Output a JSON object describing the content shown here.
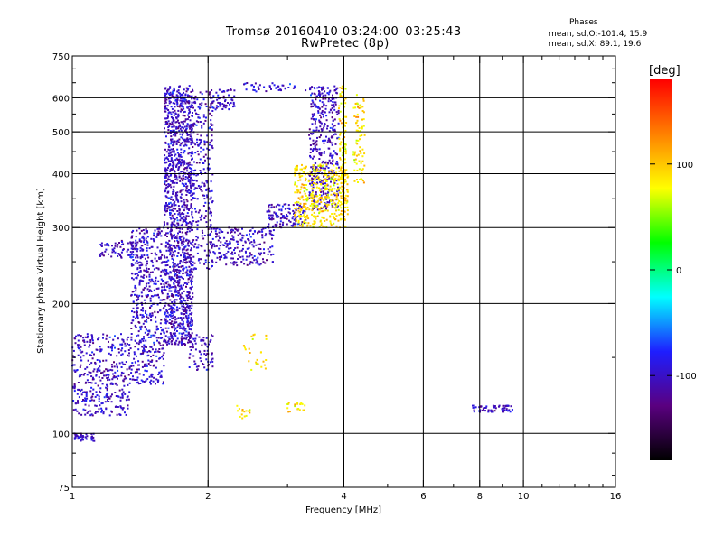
{
  "chart_data": {
    "type": "scatter",
    "title": "Tromsø 20160410 03:24:00–03:25:43",
    "subtitle": "RwPretec (8p)",
    "xlabel": "Frequency [MHz]",
    "ylabel": "Stationary phase Virtual Height [km]",
    "x_scale": "log",
    "y_scale": "log",
    "xlim": [
      1,
      16
    ],
    "ylim": [
      75,
      750
    ],
    "x_ticks": [
      1,
      2,
      4,
      6,
      8,
      10,
      16
    ],
    "y_ticks": [
      75,
      100,
      200,
      300,
      400,
      500,
      600,
      750
    ],
    "grid": true,
    "phase_stats": {
      "heading": "Phases",
      "o_line": "mean, sd,O:-101.4, 15.9",
      "x_line": "mean, sd,X:  89.1, 19.6"
    },
    "colorbar": {
      "label": "[deg]",
      "ticks": [
        100,
        0,
        -100
      ],
      "range": [
        -180,
        180
      ],
      "colors": [
        "#000000",
        "#5a0080",
        "#1e1eff",
        "#00ffff",
        "#00ff00",
        "#ffff00",
        "#ff8000",
        "#ff0000"
      ]
    },
    "series": [
      {
        "name": "O",
        "phase": -101.4,
        "clusters": [
          {
            "f": [
              1.6,
              1.85
            ],
            "h": [
              160,
              640
            ],
            "count": 1400
          },
          {
            "f": [
              1.35,
              1.6
            ],
            "h": [
              130,
              300
            ],
            "count": 500
          },
          {
            "f": [
              1.0,
              1.35
            ],
            "h": [
              110,
              170
            ],
            "count": 380
          },
          {
            "f": [
              1.15,
              1.45
            ],
            "h": [
              255,
              280
            ],
            "count": 90
          },
          {
            "f": [
              1.0,
              1.12
            ],
            "h": [
              96,
              100
            ],
            "count": 45
          },
          {
            "f": [
              1.85,
              2.05
            ],
            "h": [
              240,
              620
            ],
            "count": 260
          },
          {
            "f": [
              1.8,
              2.05
            ],
            "h": [
              140,
              170
            ],
            "count": 70
          },
          {
            "f": [
              2.0,
              2.8
            ],
            "h": [
              245,
              300
            ],
            "count": 220
          },
          {
            "f": [
              2.7,
              3.3
            ],
            "h": [
              300,
              340
            ],
            "count": 120
          },
          {
            "f": [
              3.35,
              3.9
            ],
            "h": [
              330,
              640
            ],
            "count": 420
          },
          {
            "f": [
              2.0,
              2.3
            ],
            "h": [
              560,
              630
            ],
            "count": 60
          },
          {
            "f": [
              2.4,
              3.3
            ],
            "h": [
              620,
              650
            ],
            "count": 40
          },
          {
            "f": [
              7.7,
              9.5
            ],
            "h": [
              112,
              116
            ],
            "count": 60
          }
        ]
      },
      {
        "name": "X",
        "phase": 89.1,
        "clusters": [
          {
            "f": [
              3.1,
              4.1
            ],
            "h": [
              300,
              420
            ],
            "count": 420
          },
          {
            "f": [
              3.9,
              4.05
            ],
            "h": [
              380,
              640
            ],
            "count": 90
          },
          {
            "f": [
              4.2,
              4.45
            ],
            "h": [
              380,
              620
            ],
            "count": 80
          },
          {
            "f": [
              2.4,
              2.7
            ],
            "h": [
              140,
              170
            ],
            "count": 25
          },
          {
            "f": [
              3.0,
              3.3
            ],
            "h": [
              112,
              118
            ],
            "count": 20
          },
          {
            "f": [
              2.3,
              2.5
            ],
            "h": [
              108,
              116
            ],
            "count": 15
          }
        ]
      }
    ]
  }
}
